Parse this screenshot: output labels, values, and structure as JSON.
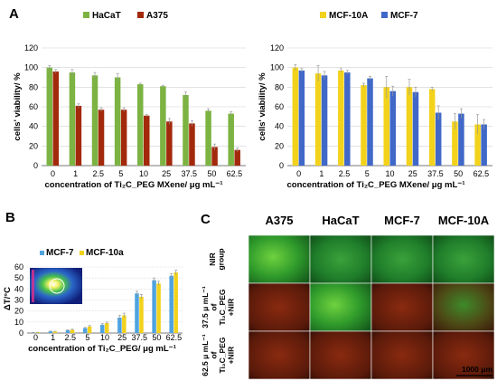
{
  "panels": {
    "a": "A",
    "b": "B",
    "c": "C"
  },
  "colors": {
    "hacat": "#7cb342",
    "a375": "#a3290c",
    "mcf10a": "#f2d21b",
    "mcf7": "#4068c8",
    "b_mcf7": "#4fa3e0",
    "b_mcf10a": "#f2d21b"
  },
  "chart_data": [
    {
      "id": "a-left",
      "type": "bar",
      "categories": [
        "0",
        "1",
        "2.5",
        "5",
        "10",
        "25",
        "37.5",
        "50",
        "62.5"
      ],
      "series": [
        {
          "name": "HaCaT",
          "values": [
            100,
            95,
            92,
            90,
            83,
            81,
            72,
            56,
            53
          ],
          "errors": [
            2,
            3,
            3,
            4,
            1,
            1,
            3,
            2,
            2
          ]
        },
        {
          "name": "A375",
          "values": [
            96,
            61,
            57,
            57,
            51,
            45,
            43,
            19,
            16
          ],
          "errors": [
            2,
            2,
            2,
            2,
            1,
            3,
            3,
            3,
            2
          ]
        }
      ],
      "ylim": [
        0,
        120
      ],
      "yticks": [
        "0",
        "20",
        "40",
        "60",
        "80",
        "100",
        "120"
      ],
      "ylabel": "cells' viability/ %",
      "xlabel": "concentration  of Ti₂C_PEG MXene/ μg mL⁻¹"
    },
    {
      "id": "a-right",
      "type": "bar",
      "categories": [
        "0",
        "1",
        "2.5",
        "5",
        "10",
        "25",
        "37.5",
        "50",
        "62.5"
      ],
      "series": [
        {
          "name": "MCF-10A",
          "values": [
            100,
            94,
            97,
            82,
            80,
            80,
            78,
            45,
            42
          ],
          "errors": [
            3,
            8,
            2,
            2,
            11,
            8,
            2,
            8,
            10
          ]
        },
        {
          "name": "MCF-7",
          "values": [
            97,
            92,
            95,
            89,
            76,
            75,
            54,
            53,
            42
          ],
          "errors": [
            2,
            4,
            2,
            2,
            5,
            5,
            7,
            5,
            5
          ]
        }
      ],
      "ylim": [
        0,
        120
      ],
      "yticks": [
        "0",
        "20",
        "40",
        "60",
        "80",
        "100",
        "120"
      ],
      "ylabel": "cells' viability/ %",
      "xlabel": "concentration  of Ti₂C_PEG MXene/ μg mL⁻¹"
    },
    {
      "id": "b",
      "type": "bar",
      "categories": [
        "0",
        "1",
        "2.5",
        "5",
        "10",
        "25",
        "37.5",
        "50",
        "62.5"
      ],
      "series": [
        {
          "name": "MCF-7",
          "values": [
            0.3,
            1.5,
            2.5,
            4.5,
            7.5,
            14,
            36,
            48,
            52
          ],
          "errors": [
            0.2,
            0.3,
            0.5,
            0.6,
            1,
            2,
            2,
            2,
            2
          ]
        },
        {
          "name": "MCF-10a",
          "values": [
            0.5,
            1.3,
            3,
            6,
            9,
            16,
            33,
            45,
            55
          ],
          "errors": [
            0.2,
            0.3,
            0.5,
            0.8,
            1,
            2,
            2,
            2,
            2
          ]
        }
      ],
      "ylim": [
        0,
        60
      ],
      "yticks": [
        "0",
        "10",
        "20",
        "30",
        "40",
        "50",
        "60"
      ],
      "ylabel": "ΔT/°C",
      "xlabel": "concentration of Ti₂C_PEG/ μg mL⁻¹"
    }
  ],
  "panel_c": {
    "columns": [
      "A375",
      "HaCaT",
      "MCF-7",
      "MCF-10A"
    ],
    "rows": [
      {
        "label": "NIR group",
        "lines": [
          "NIR",
          "group"
        ],
        "tone": "green"
      },
      {
        "label": "37.5 μ mL⁻¹ of Ti₂C_PEG +NIR",
        "lines": [
          "37.5 μ mL⁻¹",
          "of",
          "Ti₂C_PEG",
          "+NIR"
        ],
        "tone": "mixed"
      },
      {
        "label": "62.5 μ mL⁻¹ of Ti₂C_PEG +NIR",
        "lines": [
          "62.5 μ mL⁻¹",
          "of",
          "Ti₂C_PEG",
          "+NIR"
        ],
        "tone": "red"
      }
    ],
    "scale_bar": "1000 μm"
  }
}
